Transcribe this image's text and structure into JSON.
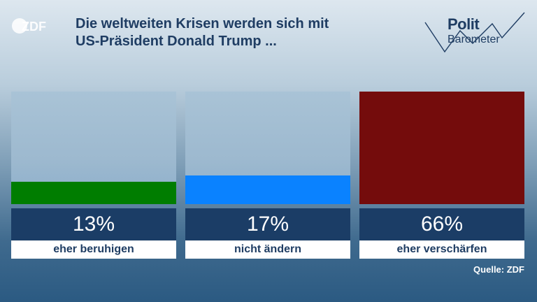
{
  "header": {
    "logo": "ZDF",
    "title_line1": "Die weltweiten Krisen werden sich mit",
    "title_line2": "US-Präsident Donald Trump ...",
    "brand_line1": "Polit",
    "brand_line2": "Barometer"
  },
  "chart_data": {
    "type": "bar",
    "title": "Die weltweiten Krisen werden sich mit US-Präsident Donald Trump ...",
    "categories": [
      "eher beruhigen",
      "nicht ändern",
      "eher verschärfen"
    ],
    "values": [
      13,
      17,
      66
    ],
    "value_labels": [
      "13%",
      "17%",
      "66%"
    ],
    "colors": [
      "#007d00",
      "#0a82ff",
      "#740c0c"
    ],
    "ylim": [
      0,
      66
    ],
    "legend": "none",
    "grid": false
  },
  "footer": {
    "source": "Quelle: ZDF"
  }
}
